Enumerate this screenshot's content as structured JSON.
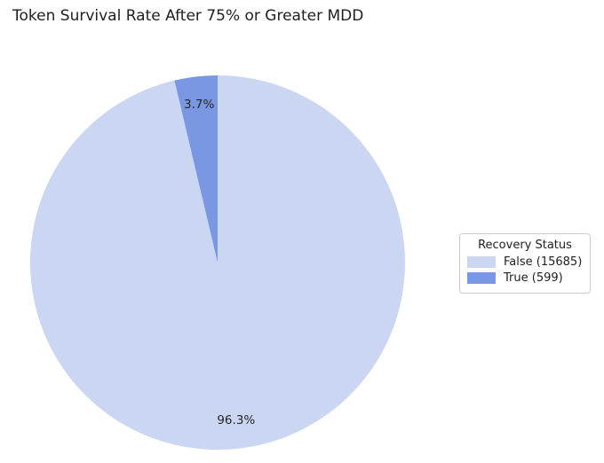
{
  "colors": {
    "false_slice": "#cbd6f2",
    "true_slice": "#7a98e2",
    "text": "#262626",
    "legend_border": "#cccccc",
    "background": "#ffffff"
  },
  "chart_data": {
    "type": "pie",
    "title": "Token Survival Rate After 75% or Greater MDD",
    "slices": [
      {
        "label": "False",
        "count": 15685,
        "pct": 96.3,
        "pct_label": "96.3%",
        "color": "#cbd6f2"
      },
      {
        "label": "True",
        "count": 599,
        "pct": 3.7,
        "pct_label": "3.7%",
        "color": "#7a98e2"
      }
    ],
    "start_angle": 90,
    "direction": "clockwise",
    "pct_label_distance": 0.85,
    "legend_position": "center right"
  },
  "legend": {
    "title": "Recovery Status",
    "items": [
      {
        "label": "False (15685)",
        "color": "#cbd6f2"
      },
      {
        "label": "True (599)",
        "color": "#7a98e2"
      }
    ]
  }
}
